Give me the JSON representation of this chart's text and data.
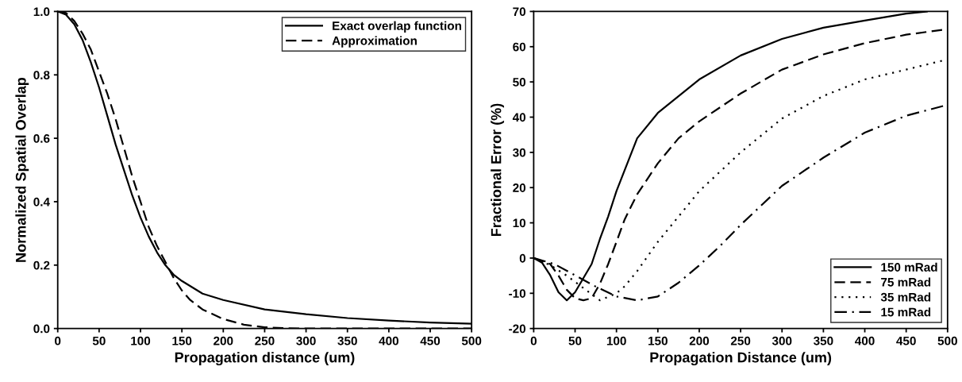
{
  "chart_data": [
    {
      "type": "line",
      "xlabel": "Propagation distance (um)",
      "ylabel": "Normalized Spatial Overlap",
      "xlim": [
        0,
        500
      ],
      "ylim": [
        0,
        1.0
      ],
      "xticks": [
        0,
        50,
        100,
        150,
        200,
        250,
        300,
        350,
        400,
        450,
        500
      ],
      "yticks": [
        {
          "value": 0,
          "label": "0.0"
        },
        0.2,
        0.4,
        0.6,
        0.8,
        {
          "value": 1,
          "label": "1.0"
        }
      ],
      "legend": "top right",
      "grid": false,
      "series": [
        {
          "name": "Exact overlap function",
          "color": "#000000",
          "line_style": "solid",
          "x": [
            0,
            10,
            20,
            30,
            40,
            50,
            60,
            70,
            80,
            90,
            100,
            110,
            120,
            130,
            140,
            150,
            175,
            200,
            250,
            300,
            350,
            400,
            450,
            500
          ],
          "values": [
            1.0,
            0.99,
            0.96,
            0.91,
            0.84,
            0.76,
            0.67,
            0.58,
            0.5,
            0.42,
            0.35,
            0.29,
            0.24,
            0.2,
            0.17,
            0.15,
            0.11,
            0.09,
            0.06,
            0.045,
            0.033,
            0.025,
            0.019,
            0.015
          ]
        },
        {
          "name": "Approximation",
          "color": "#000000",
          "line_style": "dashed",
          "x": [
            0,
            10,
            20,
            30,
            40,
            50,
            60,
            70,
            80,
            90,
            100,
            110,
            120,
            130,
            140,
            150,
            160,
            175,
            200,
            225,
            250,
            275,
            300,
            350,
            400,
            450,
            500
          ],
          "values": [
            1.0,
            0.995,
            0.97,
            0.93,
            0.88,
            0.81,
            0.74,
            0.66,
            0.57,
            0.48,
            0.4,
            0.32,
            0.26,
            0.21,
            0.16,
            0.12,
            0.09,
            0.06,
            0.03,
            0.012,
            0.004,
            0.001,
            0,
            0,
            0,
            0,
            0
          ]
        }
      ]
    },
    {
      "type": "line",
      "xlabel": "Propagation Distance (um)",
      "ylabel": "Fractional Error (%)",
      "xlim": [
        0,
        500
      ],
      "ylim": [
        -20,
        70
      ],
      "xticks": [
        0,
        50,
        100,
        150,
        200,
        250,
        300,
        350,
        400,
        450,
        500
      ],
      "yticks": [
        -20,
        -10,
        0,
        10,
        20,
        30,
        40,
        50,
        60,
        70
      ],
      "legend": "bottom right",
      "grid": false,
      "series": [
        {
          "name": "150 mRad",
          "color": "#000000",
          "line_style": "solid",
          "x": [
            0,
            10,
            20,
            30,
            40,
            50,
            60,
            70,
            80,
            90,
            100,
            125,
            150,
            200,
            250,
            300,
            350,
            400,
            450,
            475
          ],
          "values": [
            0,
            -1.3,
            -4.9,
            -9.7,
            -12,
            -9.7,
            -5.7,
            -1.7,
            5.4,
            11.8,
            19,
            34,
            41.2,
            50.7,
            57.5,
            62.2,
            65.4,
            67.4,
            69.4,
            70
          ]
        },
        {
          "name": "75 mRad",
          "color": "#000000",
          "line_style": "dashed",
          "x": [
            0,
            20,
            30,
            40,
            50,
            60,
            70,
            80,
            90,
            100,
            110,
            125,
            150,
            175,
            200,
            250,
            300,
            350,
            400,
            450,
            500
          ],
          "values": [
            0,
            -1.7,
            -5,
            -9,
            -11.4,
            -12,
            -11.4,
            -7.3,
            -1.7,
            4.6,
            11,
            18.1,
            26.9,
            34,
            38.8,
            46.7,
            53.5,
            57.8,
            61,
            63.4,
            65
          ]
        },
        {
          "name": "35 mRad",
          "color": "#000000",
          "line_style": "dotted",
          "x": [
            0,
            20,
            40,
            60,
            80,
            100,
            110,
            125,
            150,
            175,
            200,
            250,
            300,
            350,
            400,
            450,
            500
          ],
          "values": [
            0,
            -2,
            -5,
            -8.5,
            -12,
            -10,
            -8,
            -3.7,
            4.6,
            11.8,
            19,
            30,
            39.6,
            46,
            50.7,
            53.5,
            56.4
          ]
        },
        {
          "name": "15 mRad",
          "color": "#000000",
          "line_style": "dashdot",
          "x": [
            0,
            25,
            50,
            75,
            100,
            125,
            150,
            175,
            200,
            225,
            250,
            300,
            350,
            400,
            450,
            500
          ],
          "values": [
            0,
            -1.7,
            -4.9,
            -8.1,
            -10.9,
            -12,
            -10.9,
            -7,
            -2.1,
            3.4,
            9.4,
            20.5,
            28.5,
            35.6,
            40.4,
            43.5
          ]
        }
      ]
    }
  ]
}
